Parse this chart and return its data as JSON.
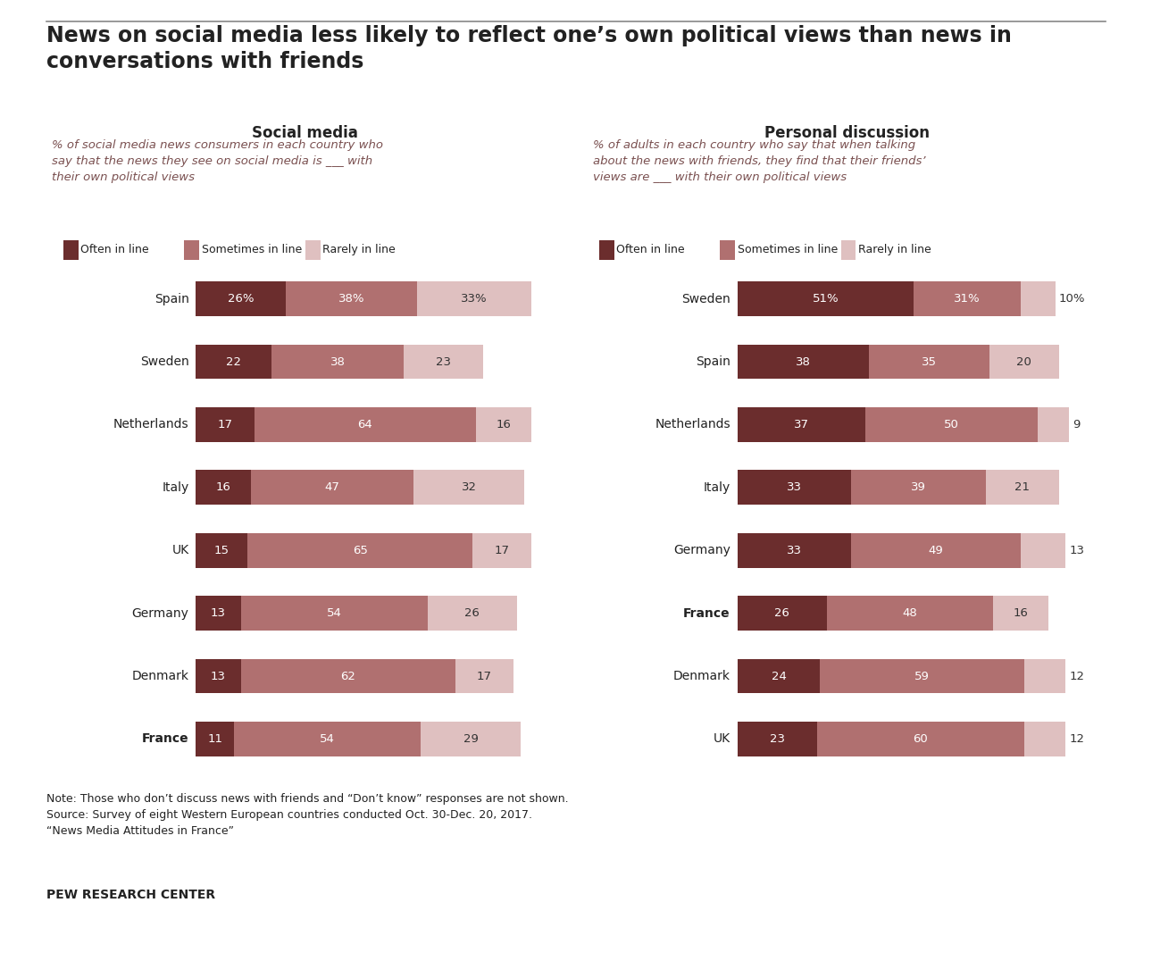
{
  "title": "News on social media less likely to reflect one’s own political views than news in\nconversations with friends",
  "title_fontsize": 17,
  "left_panel": {
    "header": "Social media",
    "subtext": "% of social media news consumers in each country who\nsay that the news they see on social media is ___ with\ntheir own political views",
    "countries": [
      "Spain",
      "Sweden",
      "Netherlands",
      "Italy",
      "UK",
      "Germany",
      "Denmark",
      "France"
    ],
    "bold_countries": [
      "France"
    ],
    "often": [
      26,
      22,
      17,
      16,
      15,
      13,
      13,
      11
    ],
    "sometimes": [
      38,
      38,
      64,
      47,
      65,
      54,
      62,
      54
    ],
    "rarely": [
      33,
      23,
      16,
      32,
      17,
      26,
      17,
      29
    ],
    "first_row_percent": true
  },
  "right_panel": {
    "header": "Personal discussion",
    "subtext": "% of adults in each country who say that when talking\nabout the news with friends, they find that their friends’\nviews are ___ with their own political views",
    "countries": [
      "Sweden",
      "Spain",
      "Netherlands",
      "Italy",
      "Germany",
      "France",
      "Denmark",
      "UK"
    ],
    "bold_countries": [
      "France"
    ],
    "often": [
      51,
      38,
      37,
      33,
      33,
      26,
      24,
      23
    ],
    "sometimes": [
      31,
      35,
      50,
      39,
      49,
      48,
      59,
      60
    ],
    "rarely": [
      10,
      20,
      9,
      21,
      13,
      16,
      12,
      12
    ],
    "first_row_percent": true
  },
  "colors": {
    "often": "#6b2d2d",
    "sometimes": "#b07070",
    "rarely": "#dfc0c0",
    "text_dark": "#222222",
    "subtext_color": "#7a5050",
    "bar_text_white": "#ffffff",
    "bar_text_dark": "#333333",
    "background": "#ffffff"
  },
  "legend_labels": [
    "Often in line",
    "Sometimes in line",
    "Rarely in line"
  ],
  "note": "Note: Those who don’t discuss news with friends and “Don’t know” responses are not shown.\nSource: Survey of eight Western European countries conducted Oct. 30-Dec. 20, 2017.\n“News Media Attitudes in France”",
  "footer": "PEW RESEARCH CENTER"
}
